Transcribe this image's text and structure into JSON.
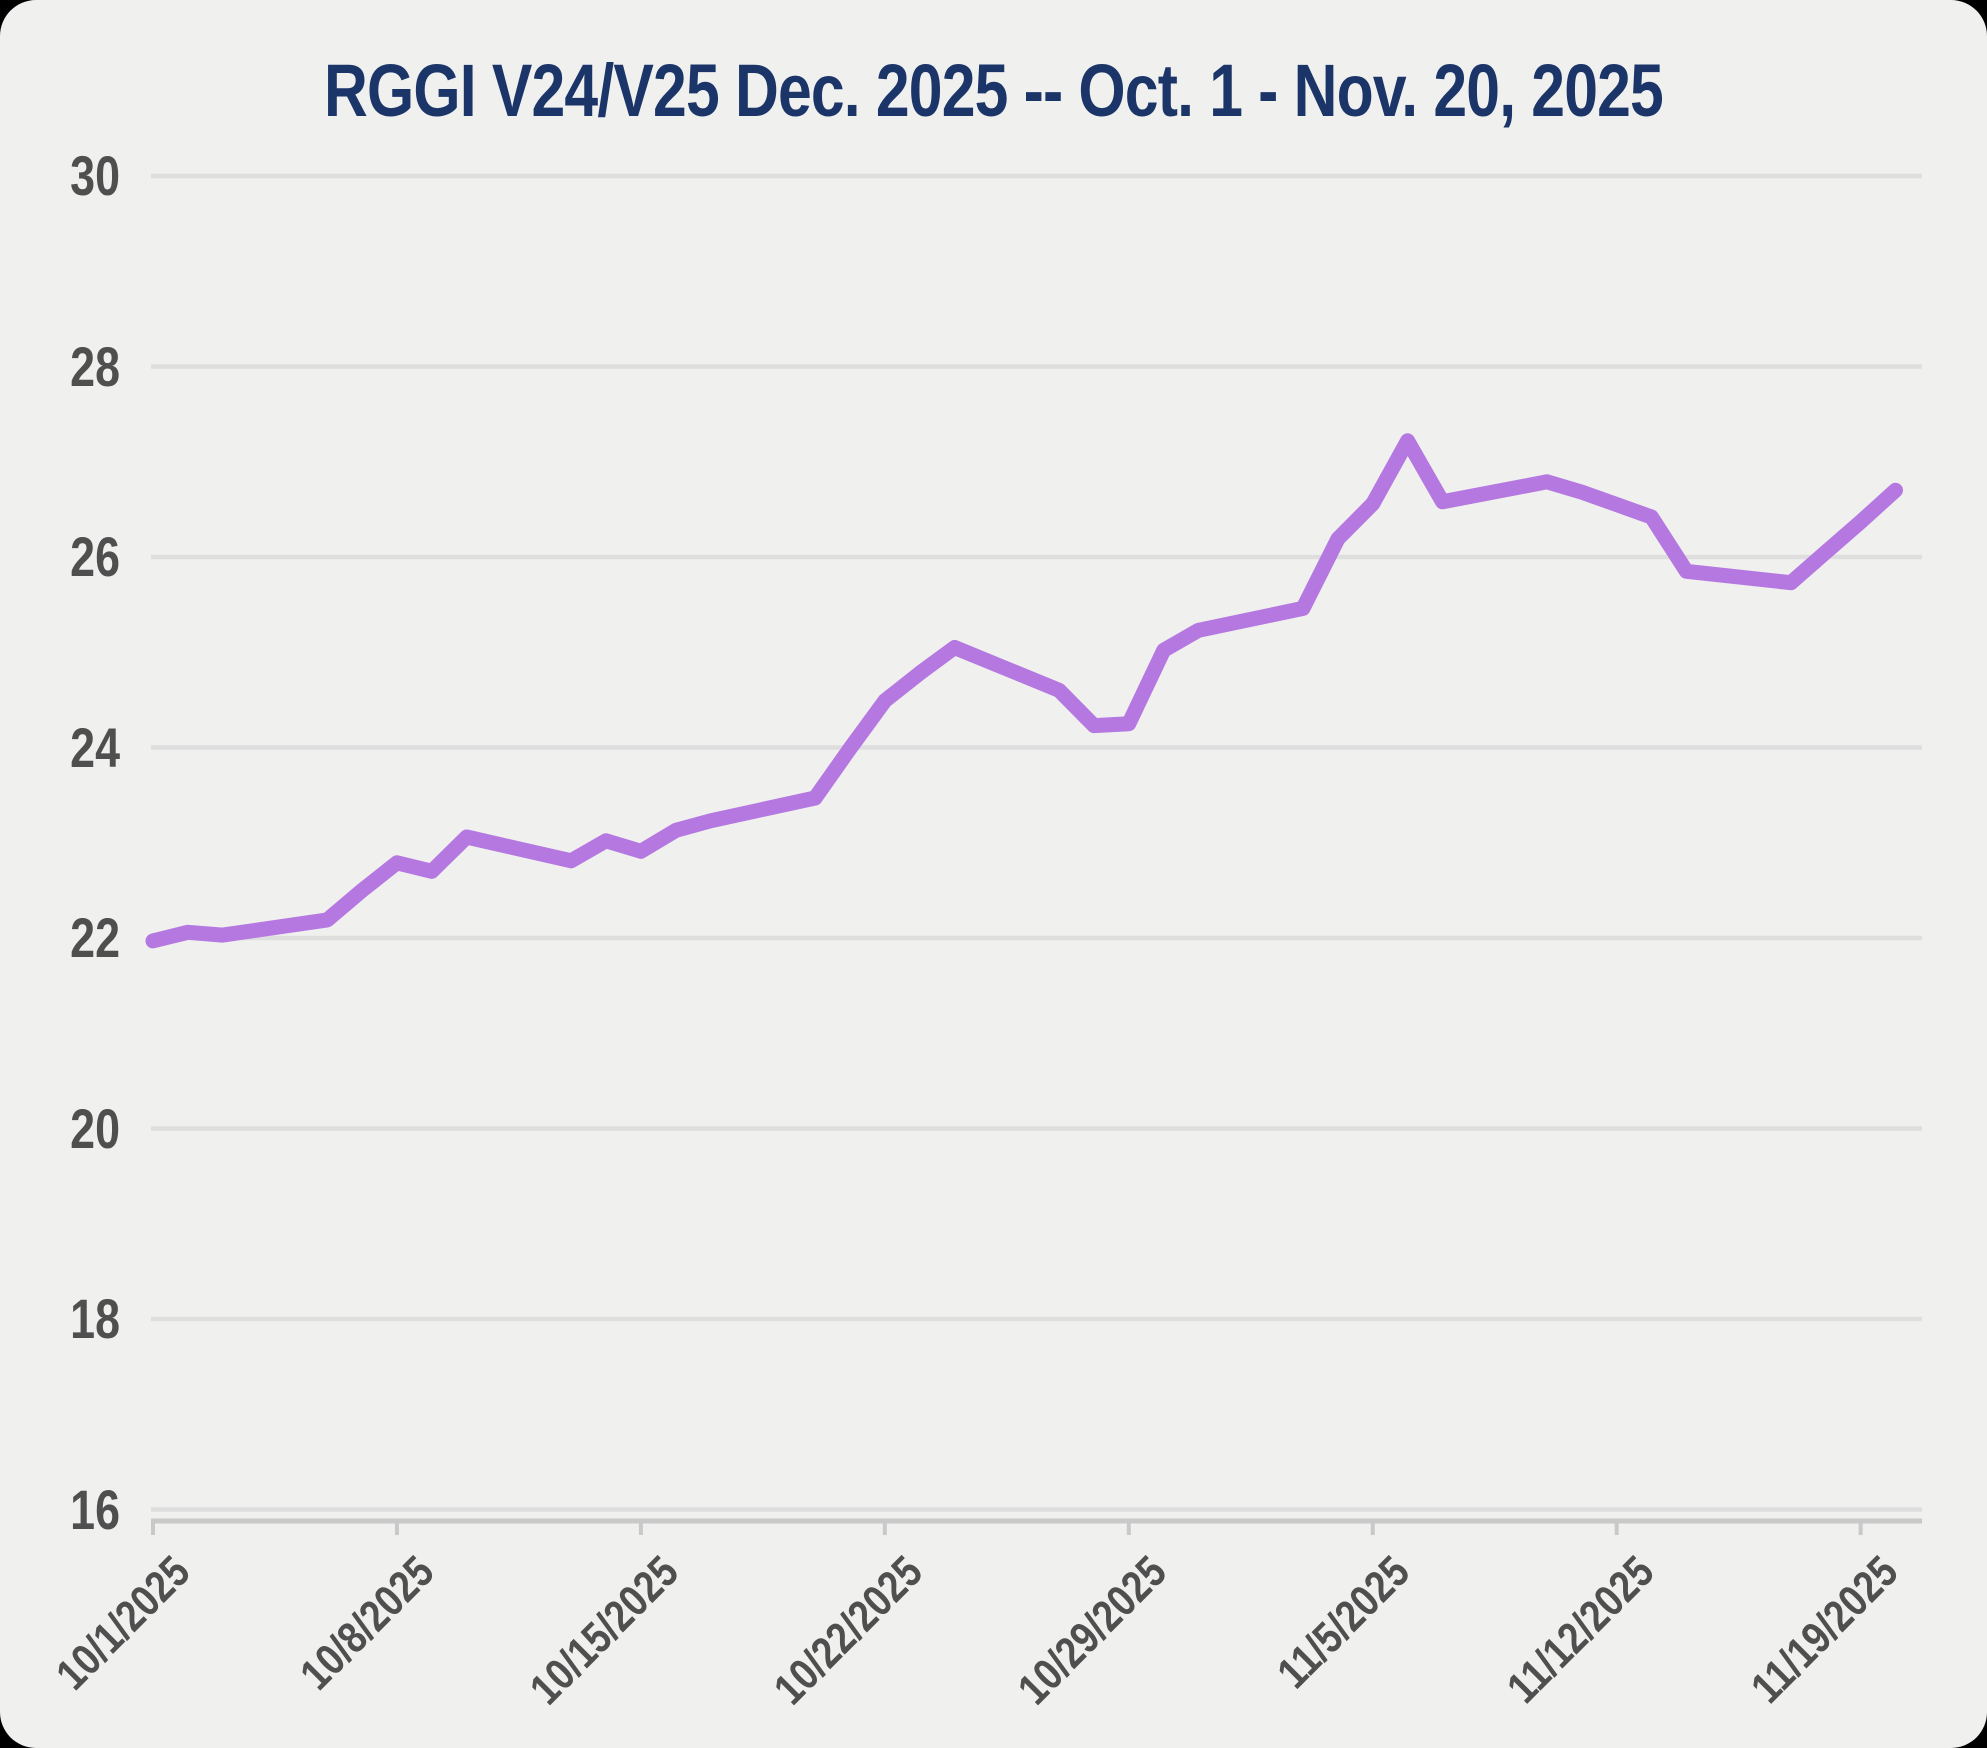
{
  "page": {
    "outside_color": "#000000",
    "card_color": "#f0f0ef"
  },
  "chart_data": {
    "type": "line",
    "title": "RGGI V24/V25 Dec. 2025 -- Oct. 1 - Nov. 20, 2025",
    "title_color": "#1b3569",
    "line_color": "#b478e0",
    "grid_color": "#dedede",
    "axis_color": "#c9c9c9",
    "label_color": "#4f4f4f",
    "grid": true,
    "legend_position": "none",
    "ylim": [
      16,
      30
    ],
    "ytick_labels": [
      "16",
      "18",
      "20",
      "22",
      "24",
      "26",
      "28",
      "30"
    ],
    "xtick_labels": [
      "10/1/2025",
      "10/8/2025",
      "10/15/2025",
      "10/22/2025",
      "10/29/2025",
      "11/5/2025",
      "11/12/2025",
      "11/19/2025"
    ],
    "x": [
      "10/1/2025",
      "10/2/2025",
      "10/3/2025",
      "10/6/2025",
      "10/7/2025",
      "10/8/2025",
      "10/9/2025",
      "10/10/2025",
      "10/13/2025",
      "10/14/2025",
      "10/15/2025",
      "10/16/2025",
      "10/17/2025",
      "10/20/2025",
      "10/21/2025",
      "10/22/2025",
      "10/23/2025",
      "10/24/2025",
      "10/27/2025",
      "10/28/2025",
      "10/29/2025",
      "10/30/2025",
      "10/31/2025",
      "11/3/2025",
      "11/4/2025",
      "11/5/2025",
      "11/6/2025",
      "11/7/2025",
      "11/10/2025",
      "11/11/2025",
      "11/12/2025",
      "11/13/2025",
      "11/14/2025",
      "11/17/2025",
      "11/18/2025",
      "11/19/2025",
      "11/20/2025"
    ],
    "values": [
      21.97,
      22.06,
      22.03,
      22.19,
      22.5,
      22.79,
      22.7,
      23.06,
      22.81,
      23.02,
      22.91,
      23.13,
      23.23,
      23.47,
      23.99,
      24.49,
      24.78,
      25.05,
      24.6,
      24.23,
      24.25,
      25.02,
      25.23,
      25.46,
      26.19,
      26.56,
      27.22,
      26.58,
      26.79,
      26.68,
      26.55,
      26.42,
      25.85,
      25.73,
      26.05,
      26.37,
      26.7
    ]
  }
}
